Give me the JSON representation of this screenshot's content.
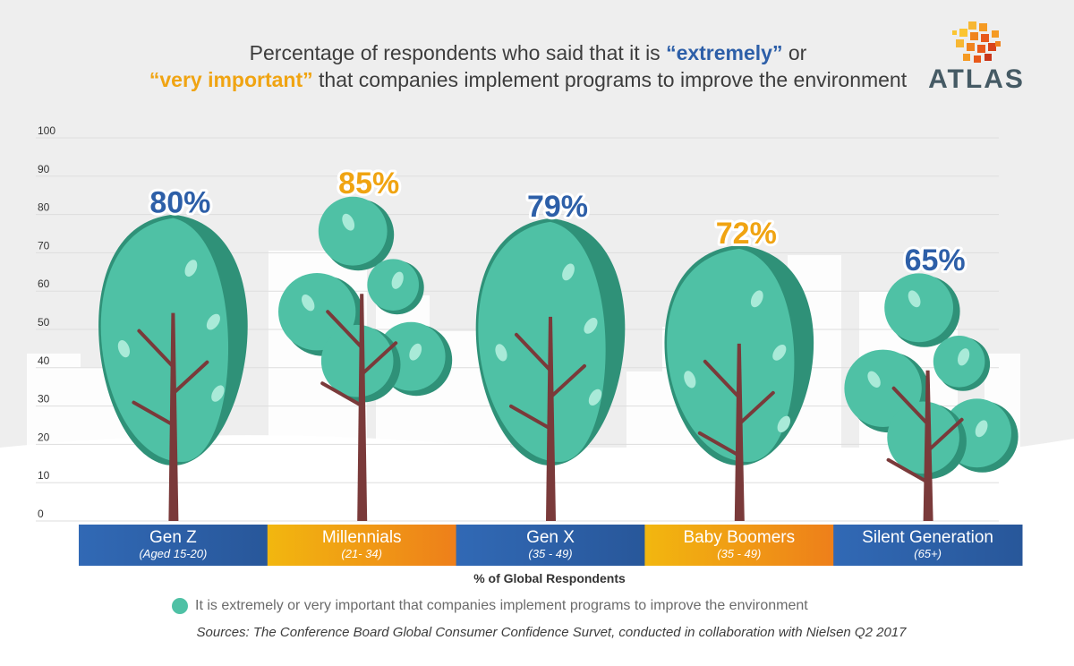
{
  "title": {
    "part1": "Percentage of respondents who said that it is ",
    "emph1": "“extremely”",
    "part2": " or ",
    "emph2": "“very important”",
    "part3": " that companies implement programs to improve the environment"
  },
  "logo": {
    "text": "ATLAS",
    "icon": "orange-mosaic-globe-icon"
  },
  "colors": {
    "blue": "#2d5fa8",
    "orange": "#f0a412",
    "tree": "#4fc1a5",
    "tree_shadow": "#2f9178",
    "trunk": "#7a3a3a",
    "bg_grey": "#eeeeee"
  },
  "chart_data": {
    "type": "bar",
    "categories": [
      "Gen Z",
      "Millennials",
      "Gen X",
      "Baby Boomers",
      "Silent Generation"
    ],
    "subtitles": [
      "(Aged 15-20)",
      "(21- 34)",
      "(35 - 49)",
      "(35 - 49)",
      "(65+)"
    ],
    "series": [
      {
        "name": "It is extremely or very important that companies implement programs to improve the environment",
        "values": [
          80,
          85,
          79,
          72,
          65
        ]
      }
    ],
    "value_labels": [
      "80%",
      "85%",
      "79%",
      "72%",
      "65%"
    ],
    "label_colors": [
      "blue",
      "orange",
      "blue",
      "orange",
      "blue"
    ],
    "band_colors": [
      "blue",
      "orange",
      "blue",
      "orange",
      "blue"
    ],
    "tree_styles": [
      "tall",
      "bushy",
      "tall",
      "tall",
      "bushy"
    ],
    "xlabel": "% of Global Respondents",
    "ylabel": "",
    "ylim": [
      0,
      100
    ],
    "yticks": [
      0,
      10,
      20,
      30,
      40,
      50,
      60,
      70,
      80,
      90,
      100
    ],
    "grid": true,
    "legend_position": "bottom"
  },
  "source": "Sources: The Conference Board  Global Consumer Confidence Survet, conducted in collaboration with Nielsen Q2 2017"
}
